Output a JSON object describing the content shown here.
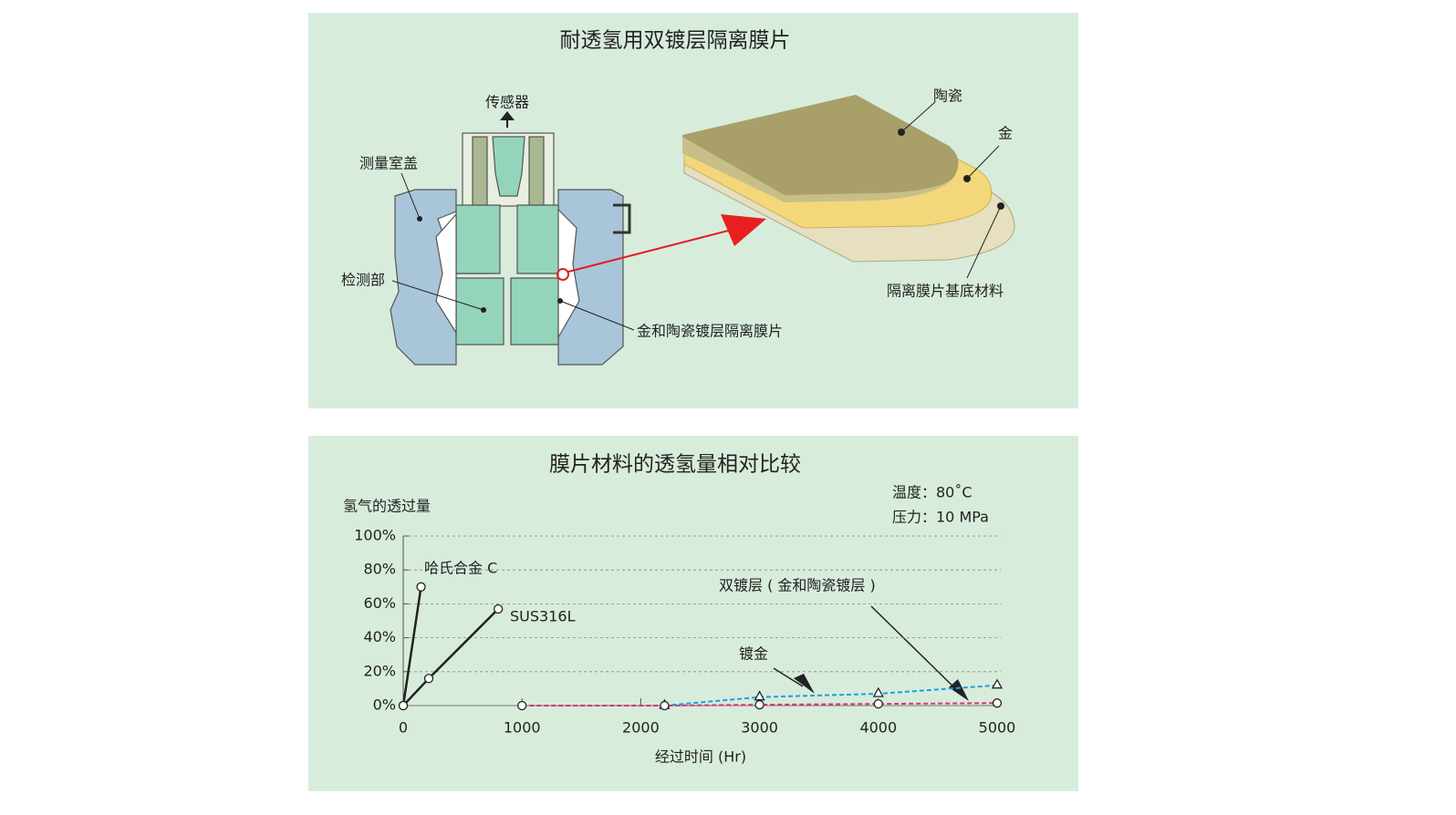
{
  "diagram": {
    "title": "耐透氢用双镀层隔离膜片",
    "labels": {
      "sensor": "传感器",
      "cover": "测量室盖",
      "detector": "检测部",
      "diaphragm": "金和陶瓷镀层隔离膜片",
      "ceramic": "陶瓷",
      "gold": "金",
      "base": "隔离膜片基底材料"
    }
  },
  "chart_data": {
    "type": "line",
    "title": "膜片材料的透氢量相对比较",
    "y_label": "氢气的透过量",
    "x_label": "经过时间 (Hr)",
    "annotations": [
      "温度：80˚C",
      "压力：10 MPa"
    ],
    "xlim": [
      0,
      5000
    ],
    "xticks": [
      0,
      1000,
      2000,
      3000,
      4000,
      5000
    ],
    "ylim": [
      0,
      100
    ],
    "yticks": [
      {
        "value": 0,
        "label": "0%"
      },
      {
        "value": 20,
        "label": "20%"
      },
      {
        "value": 40,
        "label": "40%"
      },
      {
        "value": 60,
        "label": "60%"
      },
      {
        "value": 80,
        "label": "80%"
      },
      {
        "value": 100,
        "label": "100%"
      }
    ],
    "grid": true,
    "series": [
      {
        "name": "哈氏合金 C",
        "color": "#222222",
        "dashed": false,
        "marker": "circle",
        "x": [
          0,
          150
        ],
        "values": [
          0,
          70
        ]
      },
      {
        "name": "SUS316L",
        "color": "#222222",
        "dashed": false,
        "marker": "circle",
        "x": [
          0,
          215,
          800
        ],
        "values": [
          0,
          16,
          57
        ]
      },
      {
        "name": "镀金",
        "color": "#1aa0dc",
        "dashed": true,
        "marker": "triangle",
        "x": [
          2200,
          3000,
          4000,
          5000
        ],
        "values": [
          0,
          5,
          7,
          12
        ]
      },
      {
        "name": "双镀层 ( 金和陶瓷镀层 )",
        "color": "#e0307a",
        "dashed": true,
        "marker": "circle",
        "x": [
          1000,
          2200,
          3000,
          4000,
          5000
        ],
        "values": [
          0,
          0,
          0.5,
          1,
          1.5
        ]
      }
    ]
  }
}
